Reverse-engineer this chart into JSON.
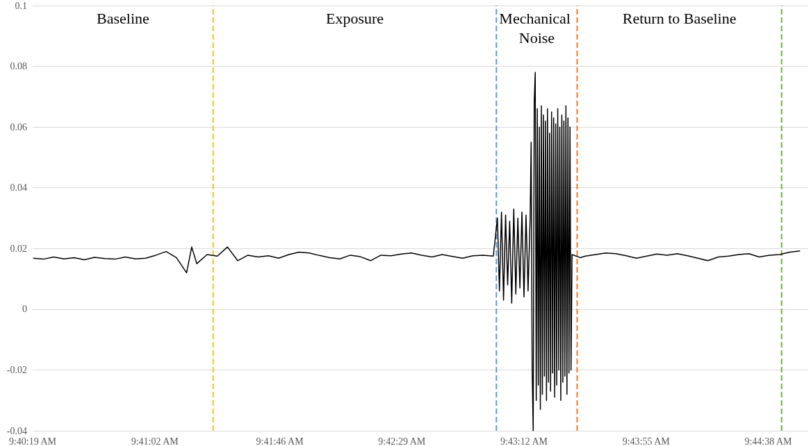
{
  "chart_data": {
    "type": "line",
    "marker": "none",
    "line_style": "solid",
    "grid": "y",
    "xlim": [
      9.671944,
      9.7478
    ],
    "xticks": [
      {
        "value": 9.671944,
        "label": "9:40:19 AM"
      },
      {
        "value": 9.683889,
        "label": "9:41:02 AM"
      },
      {
        "value": 9.696111,
        "label": "9:41:46 AM"
      },
      {
        "value": 9.708056,
        "label": "9:42:29 AM"
      },
      {
        "value": 9.72,
        "label": "9:43:12 AM"
      },
      {
        "value": 9.731944,
        "label": "9:43:55 AM"
      },
      {
        "value": 9.743889,
        "label": "9:44:38 AM"
      }
    ],
    "ylim": [
      -0.04,
      0.1
    ],
    "yticks": [
      -0.04,
      -0.02,
      0,
      0.02,
      0.04,
      0.06,
      0.08,
      0.1
    ],
    "x": [
      9.672,
      9.673,
      9.674,
      9.675,
      9.676,
      9.677,
      9.678,
      9.679,
      9.68,
      9.681,
      9.682,
      9.683,
      9.684,
      9.685,
      9.686,
      9.687,
      9.6875,
      9.688,
      9.689,
      9.69,
      9.691,
      9.692,
      9.693,
      9.694,
      9.695,
      9.696,
      9.697,
      9.698,
      9.699,
      9.7,
      9.701,
      9.702,
      9.703,
      9.704,
      9.705,
      9.706,
      9.707,
      9.708,
      9.709,
      9.71,
      9.711,
      9.712,
      9.713,
      9.714,
      9.715,
      9.716,
      9.717,
      9.7174,
      9.7176,
      9.7178,
      9.718,
      9.7182,
      9.7184,
      9.7186,
      9.7188,
      9.719,
      9.7192,
      9.7194,
      9.7196,
      9.7198,
      9.72,
      9.7202,
      9.7204,
      9.7206,
      9.7207,
      9.7208,
      9.7209,
      9.721,
      9.7211,
      9.7212,
      9.7213,
      9.7214,
      9.7215,
      9.7216,
      9.7217,
      9.7218,
      9.7219,
      9.722,
      9.7221,
      9.7222,
      9.7223,
      9.7224,
      9.7225,
      9.7226,
      9.7227,
      9.7228,
      9.7229,
      9.723,
      9.7231,
      9.7232,
      9.7233,
      9.7234,
      9.7235,
      9.7236,
      9.7237,
      9.7238,
      9.7239,
      9.724,
      9.7241,
      9.7242,
      9.7243,
      9.7244,
      9.7245,
      9.7246,
      9.7247,
      9.7255,
      9.726,
      9.727,
      9.728,
      9.729,
      9.73,
      9.731,
      9.732,
      9.733,
      9.734,
      9.735,
      9.736,
      9.737,
      9.738,
      9.739,
      9.74,
      9.741,
      9.742,
      9.743,
      9.744,
      9.745,
      9.746,
      9.747
    ],
    "series": [
      {
        "color": "#000000",
        "values": [
          0.0168,
          0.0165,
          0.0172,
          0.0166,
          0.017,
          0.0163,
          0.0171,
          0.0167,
          0.0165,
          0.0172,
          0.0166,
          0.0168,
          0.0178,
          0.019,
          0.017,
          0.012,
          0.0205,
          0.015,
          0.018,
          0.0175,
          0.0205,
          0.016,
          0.0178,
          0.0172,
          0.0176,
          0.0168,
          0.018,
          0.0188,
          0.0185,
          0.0177,
          0.017,
          0.0166,
          0.0178,
          0.0173,
          0.016,
          0.0178,
          0.0176,
          0.0182,
          0.0185,
          0.0178,
          0.0172,
          0.018,
          0.0174,
          0.0168,
          0.0176,
          0.0178,
          0.0175,
          0.03,
          0.006,
          0.032,
          0.003,
          0.031,
          0.008,
          0.029,
          0.002,
          0.033,
          0.005,
          0.03,
          0.007,
          0.032,
          0.004,
          0.031,
          0.006,
          0.03,
          0.055,
          -0.02,
          -0.04,
          0.068,
          0.078,
          -0.03,
          0.066,
          -0.025,
          0.06,
          -0.033,
          0.067,
          -0.028,
          0.064,
          -0.022,
          0.062,
          -0.03,
          0.066,
          -0.024,
          0.058,
          -0.027,
          0.065,
          -0.021,
          0.063,
          -0.029,
          0.061,
          -0.025,
          0.066,
          -0.02,
          0.06,
          -0.03,
          0.064,
          -0.024,
          0.062,
          -0.022,
          0.067,
          -0.028,
          0.063,
          -0.021,
          0.06,
          -0.02,
          0.018,
          0.017,
          0.0175,
          0.018,
          0.0185,
          0.0183,
          0.0176,
          0.0168,
          0.0175,
          0.0182,
          0.0178,
          0.0183,
          0.0176,
          0.0168,
          0.016,
          0.0172,
          0.0175,
          0.018,
          0.0183,
          0.0172,
          0.0178,
          0.018,
          0.0188,
          0.0192
        ]
      }
    ],
    "ref_lines": [
      {
        "axis": "x",
        "value": 9.6896,
        "color": "#f2c12e",
        "line_style": "dashed"
      },
      {
        "axis": "x",
        "value": 9.7173,
        "color": "#5b9bd5",
        "line_style": "dashed"
      },
      {
        "axis": "x",
        "value": 9.7252,
        "color": "#ed7d31",
        "line_style": "dashed"
      },
      {
        "axis": "x",
        "value": 9.7452,
        "color": "#70ad47",
        "line_style": "dashed"
      }
    ],
    "annotations": [
      "Baseline",
      "Exposure",
      "Mechanical Noise",
      "Return to Baseline"
    ]
  }
}
